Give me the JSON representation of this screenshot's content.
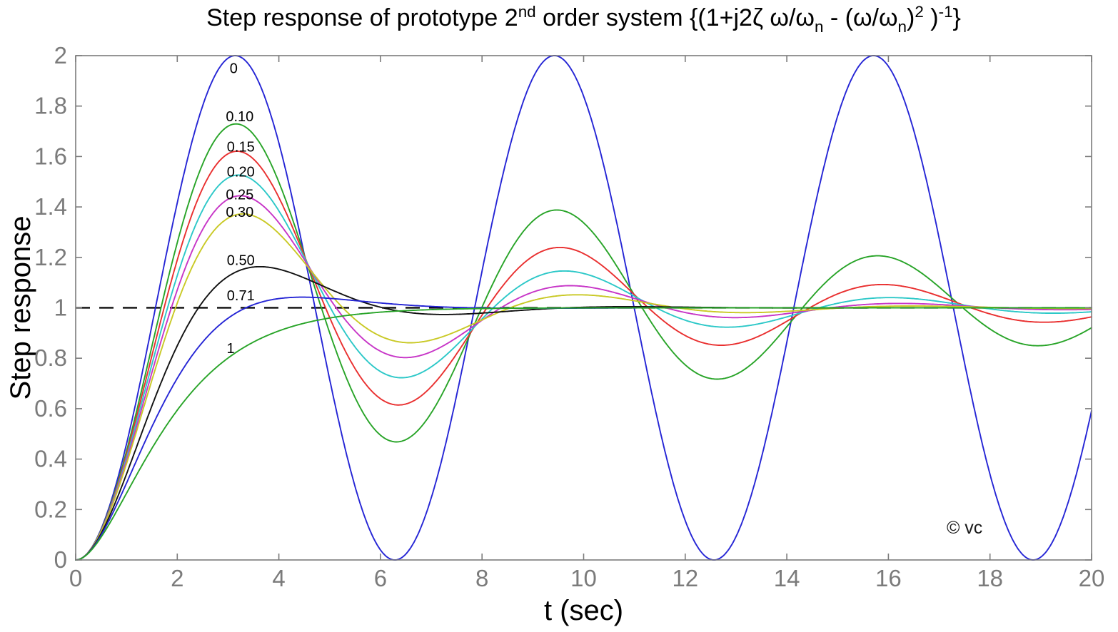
{
  "chart_data": {
    "type": "line",
    "title_segments": [
      {
        "t": "Step response of prototype 2",
        "s": "n"
      },
      {
        "t": "nd",
        "s": "sup"
      },
      {
        "t": " order system {(1+j2ζ ω/ω",
        "s": "n"
      },
      {
        "t": "n",
        "s": "sub"
      },
      {
        "t": " - (ω/ω",
        "s": "n"
      },
      {
        "t": "n",
        "s": "sub"
      },
      {
        "t": ")",
        "s": "n"
      },
      {
        "t": "2",
        "s": "sup"
      },
      {
        "t": " )",
        "s": "n"
      },
      {
        "t": "-1",
        "s": "sup"
      },
      {
        "t": "}",
        "s": "n"
      }
    ],
    "title_plain": "Step response of prototype 2nd order system {(1+j2ζ ω/ωn - (ω/ωn)2 )-1}",
    "xlabel": "t (sec)",
    "ylabel": "Step response",
    "xlim": [
      0,
      20
    ],
    "ylim": [
      0,
      2
    ],
    "xtick_labels": [
      "0",
      "2",
      "4",
      "6",
      "8",
      "10",
      "12",
      "14",
      "16",
      "18",
      "20"
    ],
    "xtick_values": [
      0,
      2,
      4,
      6,
      8,
      10,
      12,
      14,
      16,
      18,
      20
    ],
    "ytick_labels": [
      "0",
      "0.2",
      "0.4",
      "0.6",
      "0.8",
      "1",
      "1.2",
      "1.4",
      "1.6",
      "1.8",
      "2"
    ],
    "ytick_values": [
      0,
      0.2,
      0.4,
      0.6,
      0.8,
      1,
      1.2,
      1.4,
      1.6,
      1.8,
      2
    ],
    "grid": false,
    "box": true,
    "model": "unit-step response of 2nd-order prototype, wn=1 rad/s: y(t)=1-exp(-z*t)*(cos(wd*t)+(z/wd)*sin(wd*t)), wd=sqrt(1-z^2); for z=1: y(t)=1-exp(-t)*(1+t); t from 0 to 20 s",
    "series": [
      {
        "zeta": 0,
        "label": "0",
        "color": "#2525d5",
        "label_pos": [
          3.11,
          1.95
        ]
      },
      {
        "zeta": 0.1,
        "label": "0.10",
        "color": "#28a428",
        "label_pos": [
          3.23,
          1.76
        ]
      },
      {
        "zeta": 0.15,
        "label": "0.15",
        "color": "#e92f2f",
        "label_pos": [
          3.25,
          1.64
        ]
      },
      {
        "zeta": 0.2,
        "label": "0.20",
        "color": "#2cc8c8",
        "label_pos": [
          3.25,
          1.54
        ]
      },
      {
        "zeta": 0.25,
        "label": "0.25",
        "color": "#c735c7",
        "label_pos": [
          3.23,
          1.45
        ]
      },
      {
        "zeta": 0.3,
        "label": "0.30",
        "color": "#c9c925",
        "label_pos": [
          3.23,
          1.38
        ]
      },
      {
        "zeta": 0.5,
        "label": "0.50",
        "color": "#111111",
        "label_pos": [
          3.25,
          1.19
        ]
      },
      {
        "zeta": 0.71,
        "label": "0.71",
        "color": "#2525d5",
        "label_pos": [
          3.25,
          1.05
        ]
      },
      {
        "zeta": 1,
        "label": "1",
        "color": "#28a428",
        "label_pos": [
          3.05,
          0.84
        ]
      }
    ],
    "reference_line": {
      "y": 1,
      "style": "dashed",
      "color": "#000000"
    },
    "watermark": {
      "text": "© vc",
      "pos": [
        17.5,
        0.105
      ]
    },
    "colors": {
      "axis": "#7b7b7b",
      "tick_label": "#7b7b7b",
      "text": "#000000"
    }
  }
}
